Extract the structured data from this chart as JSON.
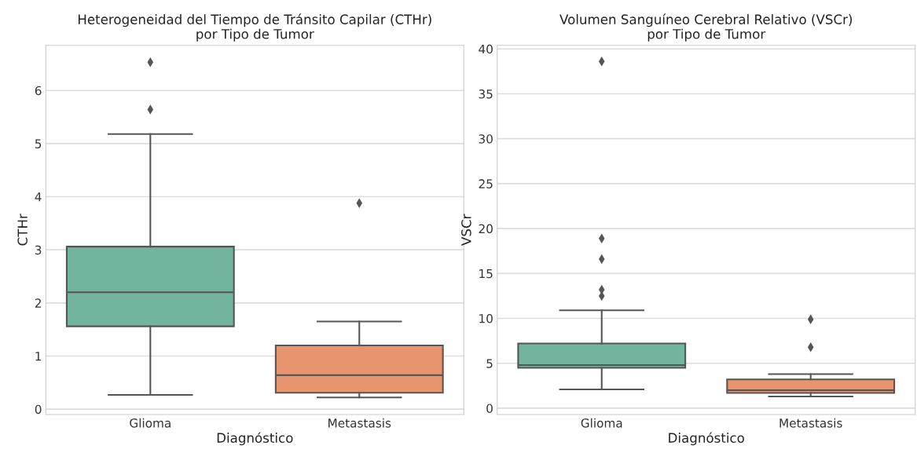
{
  "chart_data": [
    {
      "type": "box",
      "title": "Heterogeneidad del Tiempo de Tránsito Capilar (CTHr)\npor Tipo de Tumor",
      "xlabel": "Diagnóstico",
      "ylabel": "CTHr",
      "categories": [
        "Glioma",
        "Metastasis"
      ],
      "colors": [
        "#73b49f",
        "#e8956f"
      ],
      "boxes": [
        {
          "low": 0.27,
          "q1": 1.56,
          "median": 2.2,
          "q3": 3.06,
          "high": 5.18,
          "outliers": [
            5.64,
            6.53
          ]
        },
        {
          "low": 0.22,
          "q1": 0.31,
          "median": 0.64,
          "q3": 1.2,
          "high": 1.65,
          "outliers": [
            3.88
          ]
        }
      ],
      "ylim": [
        -0.1,
        6.85
      ],
      "yticks": [
        0,
        1,
        2,
        3,
        4,
        5,
        6
      ],
      "grid": "y",
      "marker": "diamond"
    },
    {
      "type": "box",
      "title": "Volumen Sanguíneo Cerebral Relativo (VSCr)\npor Tipo de Tumor",
      "xlabel": "Diagnóstico",
      "ylabel": "VSCr",
      "categories": [
        "Glioma",
        "Metastasis"
      ],
      "colors": [
        "#73b49f",
        "#e8956f"
      ],
      "boxes": [
        {
          "low": 2.1,
          "q1": 4.5,
          "median": 4.8,
          "q3": 7.2,
          "high": 10.9,
          "outliers": [
            38.6,
            18.9,
            16.6,
            13.2,
            12.5
          ]
        },
        {
          "low": 1.3,
          "q1": 1.7,
          "median": 2.0,
          "q3": 3.2,
          "high": 3.8,
          "outliers": [
            9.9,
            6.8
          ]
        }
      ],
      "ylim": [
        -0.7,
        40.4
      ],
      "yticks": [
        0,
        5,
        10,
        15,
        20,
        25,
        30,
        35,
        40
      ],
      "grid": "y",
      "marker": "diamond"
    }
  ]
}
